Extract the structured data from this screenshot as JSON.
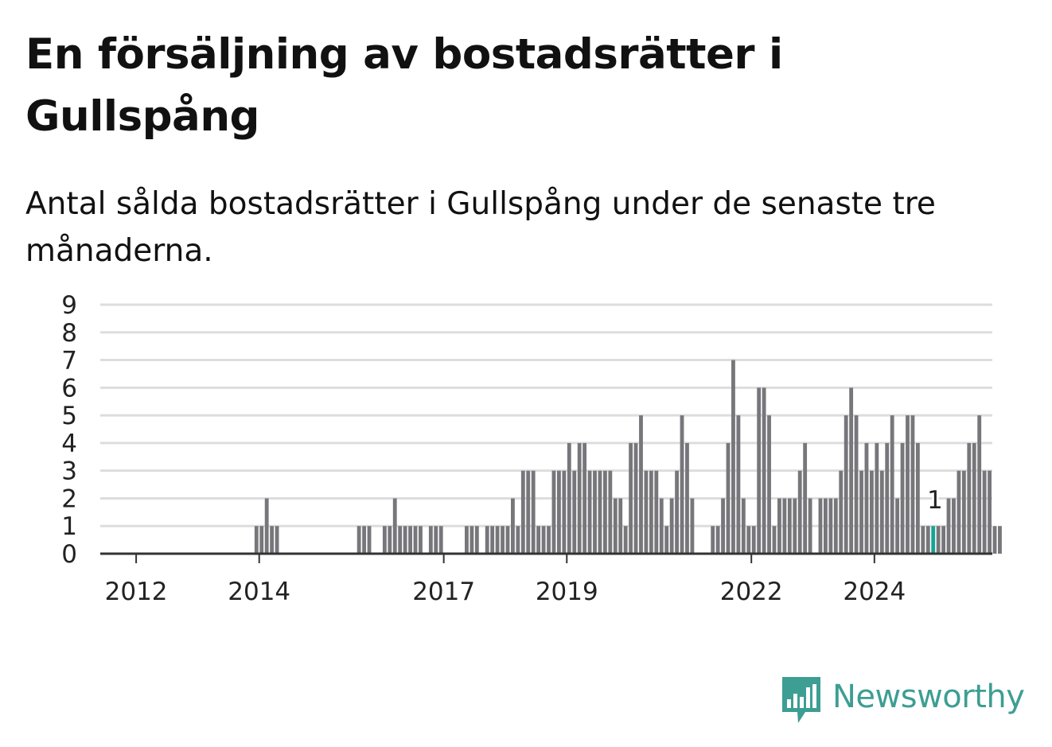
{
  "header": {
    "title": "En försäljning av bostadsrätter i Gullspång",
    "subtitle": "Antal sålda bostadsrätter i Gullspång under de senaste tre månaderna."
  },
  "brand": {
    "name": "Newsworthy",
    "icon": "newsworthy-logo-icon",
    "color": "#3d9e93"
  },
  "colors": {
    "bar": "#77767b",
    "highlight": "#16a394",
    "grid": "#dddddd",
    "axis": "#333333",
    "text": "#222222"
  },
  "chart_data": {
    "type": "bar",
    "title": "En försäljning av bostadsrätter i Gullspång",
    "subtitle": "Antal sålda bostadsrätter i Gullspång under de senaste tre månaderna.",
    "xlabel": "",
    "ylabel": "",
    "x_start": "2011-06",
    "x_end": "2025-12",
    "data_start": "2011-10",
    "x_ticks": [
      "2012",
      "2014",
      "2017",
      "2019",
      "2022",
      "2024"
    ],
    "y_ticks": [
      0,
      1,
      2,
      3,
      4,
      5,
      6,
      7,
      8,
      9
    ],
    "ylim": [
      0,
      9
    ],
    "grid": true,
    "legend": "none",
    "highlight": {
      "month": "2024-12",
      "value": 1,
      "label": "1"
    },
    "values": [
      0,
      0,
      0,
      0,
      0,
      0,
      0,
      0,
      0,
      0,
      0,
      0,
      0,
      0,
      0,
      0,
      0,
      0,
      0,
      0,
      0,
      0,
      0,
      0,
      0,
      0,
      1,
      1,
      2,
      1,
      1,
      0,
      0,
      0,
      0,
      0,
      0,
      0,
      0,
      0,
      0,
      0,
      0,
      0,
      0,
      0,
      1,
      1,
      1,
      0,
      0,
      1,
      1,
      2,
      1,
      1,
      1,
      1,
      1,
      0,
      1,
      1,
      1,
      0,
      0,
      0,
      0,
      1,
      1,
      1,
      0,
      1,
      1,
      1,
      1,
      1,
      2,
      1,
      3,
      3,
      3,
      1,
      1,
      1,
      3,
      3,
      3,
      4,
      3,
      4,
      4,
      3,
      3,
      3,
      3,
      3,
      2,
      2,
      1,
      4,
      4,
      5,
      3,
      3,
      3,
      2,
      1,
      2,
      3,
      5,
      4,
      2,
      0,
      0,
      0,
      1,
      1,
      2,
      4,
      7,
      5,
      2,
      1,
      1,
      6,
      6,
      5,
      1,
      2,
      2,
      2,
      2,
      3,
      4,
      2,
      0,
      2,
      2,
      2,
      2,
      3,
      5,
      6,
      5,
      3,
      4,
      3,
      4,
      3,
      4,
      5,
      2,
      4,
      5,
      5,
      4,
      1,
      1,
      1,
      1,
      1,
      2,
      2,
      3,
      3,
      4,
      4,
      5,
      3,
      3,
      1,
      1
    ]
  }
}
